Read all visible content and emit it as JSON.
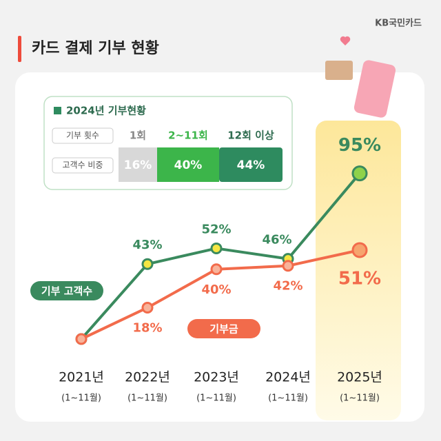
{
  "brand": "KB국민카드",
  "chart_data": {
    "type": "line",
    "title": "카드 결제 기부 현황",
    "categories": [
      "2021년",
      "2022년",
      "2023년",
      "2024년",
      "2025년"
    ],
    "sublabels": [
      "(1~11월)",
      "(1~11월)",
      "(1~11월)",
      "(1~11월)",
      "(1~11월)"
    ],
    "series": [
      {
        "name": "기부 고객수",
        "color": "#3a8a5e",
        "values": [
          0,
          43,
          52,
          46,
          95
        ],
        "value_labels": [
          null,
          "43%",
          "52%",
          "46%",
          "95%"
        ]
      },
      {
        "name": "기부금",
        "color": "#f26b4b",
        "values": [
          0,
          18,
          40,
          42,
          51
        ],
        "value_labels": [
          null,
          "18%",
          "40%",
          "42%",
          "51%"
        ]
      }
    ],
    "ylim": [
      0,
      100
    ]
  },
  "inset": {
    "title": "2024년 기부현황",
    "rows": [
      [
        "기부 횟수",
        "1회",
        "2~11회",
        "12회 이상"
      ],
      [
        "고객수 비중",
        "16%",
        "40%",
        "44%"
      ]
    ]
  }
}
